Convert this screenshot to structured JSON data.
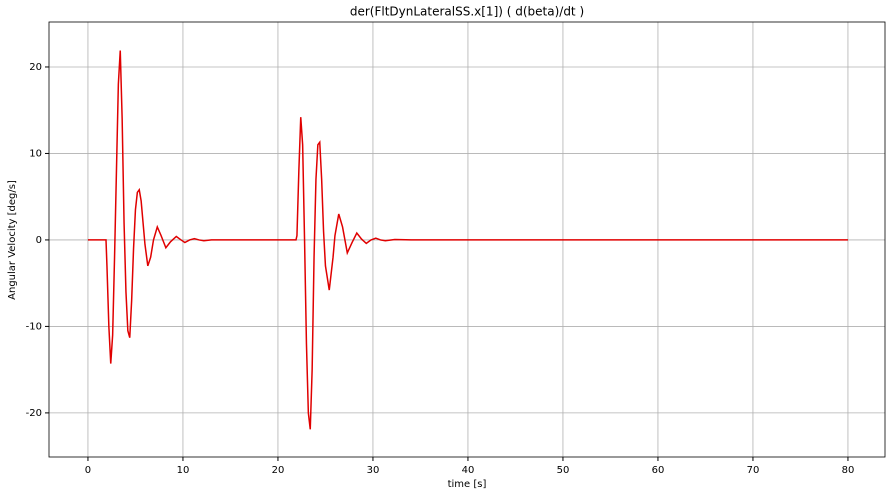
{
  "chart_data": {
    "type": "line",
    "title": "der(FltDynLateralSS.x[1]) ( d(beta)/dt )",
    "x_label": "time [s]",
    "y_label": "Angular Velocity [deg/s]",
    "x": [
      0,
      1.9,
      2.0,
      2.2,
      2.4,
      2.6,
      2.8,
      3.0,
      3.2,
      3.4,
      3.6,
      3.8,
      4.0,
      4.2,
      4.4,
      4.6,
      4.8,
      5.0,
      5.2,
      5.4,
      5.6,
      5.8,
      6.0,
      6.3,
      6.6,
      6.9,
      7.3,
      7.7,
      8.2,
      8.7,
      9.3,
      9.8,
      10.2,
      10.7,
      11.2,
      11.7,
      12.2,
      13,
      14,
      21.9,
      22.0,
      22.2,
      22.4,
      22.6,
      22.8,
      23.0,
      23.2,
      23.4,
      23.6,
      23.8,
      24.0,
      24.2,
      24.4,
      24.6,
      24.8,
      25.0,
      25.4,
      25.8,
      26.0,
      26.4,
      26.8,
      27.3,
      27.8,
      28.3,
      28.8,
      29.3,
      29.8,
      30.3,
      30.8,
      31.3,
      32.3,
      34,
      80
    ],
    "series": [
      {
        "color": "#e00000",
        "values": [
          0,
          0,
          -3,
          -10,
          -14.3,
          -11,
          -2,
          8,
          18,
          21.9,
          14,
          2,
          -6,
          -10.5,
          -11.3,
          -7,
          -1,
          3.5,
          5.5,
          5.8,
          4.5,
          2,
          -0.5,
          -3,
          -2,
          0,
          1.5,
          0.5,
          -0.9,
          -0.2,
          0.4,
          0,
          -0.3,
          0,
          0.15,
          0,
          -0.1,
          0,
          0,
          0,
          0.5,
          8,
          14.2,
          11,
          0,
          -12,
          -20,
          -21.9,
          -15,
          -2,
          7,
          11,
          11.3,
          7,
          1,
          -3,
          -5.8,
          -2,
          0.5,
          3,
          1.5,
          -1.5,
          -0.3,
          0.8,
          0.1,
          -0.4,
          0,
          0.2,
          0,
          -0.1,
          0.05,
          0,
          0
        ]
      }
    ],
    "xlim": [
      -4.1,
      83.9
    ],
    "ylim": [
      -25.1,
      25.2
    ],
    "xticks": [
      0,
      10,
      20,
      30,
      40,
      50,
      60,
      70,
      80
    ],
    "yticks": [
      -20,
      -10,
      0,
      10,
      20
    ],
    "grid": true
  }
}
